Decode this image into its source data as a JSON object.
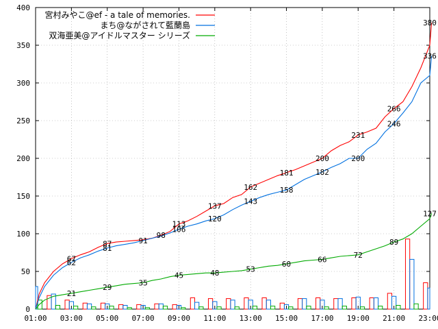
{
  "chart_data": {
    "type": "line",
    "title": "",
    "xlabel": "",
    "ylabel": "",
    "grid": true,
    "legend_position": "top-left",
    "x_range_hours": [
      1,
      23
    ],
    "ylim": [
      0,
      400
    ],
    "x_ticks": [
      "01:00",
      "03:00",
      "05:00",
      "07:00",
      "09:00",
      "11:00",
      "13:00",
      "15:00",
      "17:00",
      "19:00",
      "21:00",
      "23:00"
    ],
    "y_ticks": [
      "0",
      "50",
      "100",
      "150",
      "200",
      "250",
      "300",
      "350",
      "400"
    ],
    "series": [
      {
        "name": "宮村みやこ@ef - a tale of memories.",
        "color": "#ff0000",
        "points": [
          [
            1.0,
            0
          ],
          [
            1.2,
            20
          ],
          [
            1.5,
            35
          ],
          [
            2.0,
            50
          ],
          [
            2.5,
            60
          ],
          [
            3.0,
            67
          ],
          [
            3.5,
            72
          ],
          [
            4.0,
            76
          ],
          [
            4.5,
            82
          ],
          [
            5.0,
            87
          ],
          [
            5.5,
            89
          ],
          [
            6.0,
            90
          ],
          [
            6.5,
            91
          ],
          [
            7.0,
            92
          ],
          [
            7.5,
            94
          ],
          [
            8.0,
            98
          ],
          [
            8.5,
            103
          ],
          [
            9.0,
            113
          ],
          [
            9.5,
            117
          ],
          [
            10.0,
            123
          ],
          [
            10.5,
            130
          ],
          [
            11.0,
            137
          ],
          [
            11.5,
            140
          ],
          [
            12.0,
            148
          ],
          [
            12.5,
            152
          ],
          [
            13.0,
            162
          ],
          [
            13.5,
            167
          ],
          [
            14.0,
            172
          ],
          [
            14.5,
            177
          ],
          [
            15.0,
            181
          ],
          [
            15.5,
            185
          ],
          [
            16.0,
            190
          ],
          [
            16.5,
            195
          ],
          [
            17.0,
            200
          ],
          [
            17.5,
            210
          ],
          [
            18.0,
            217
          ],
          [
            18.5,
            222
          ],
          [
            19.0,
            231
          ],
          [
            19.5,
            235
          ],
          [
            20.0,
            240
          ],
          [
            20.5,
            255
          ],
          [
            21.0,
            266
          ],
          [
            21.5,
            275
          ],
          [
            22.0,
            295
          ],
          [
            22.5,
            320
          ],
          [
            23.0,
            350
          ],
          [
            23.1,
            380
          ]
        ],
        "labels": [
          [
            3.0,
            67,
            "67"
          ],
          [
            5.0,
            87,
            "87"
          ],
          [
            8.0,
            98,
            "98"
          ],
          [
            9.0,
            113,
            "113"
          ],
          [
            11.0,
            137,
            "137"
          ],
          [
            13.0,
            162,
            "162"
          ],
          [
            15.0,
            181,
            "181"
          ],
          [
            17.0,
            200,
            "200"
          ],
          [
            19.0,
            231,
            "231"
          ],
          [
            21.0,
            266,
            "266"
          ],
          [
            23.0,
            380,
            "380"
          ]
        ]
      },
      {
        "name": "まち@ながされて藍蘭島",
        "color": "#0070e0",
        "points": [
          [
            1.0,
            0
          ],
          [
            1.2,
            15
          ],
          [
            1.5,
            30
          ],
          [
            2.0,
            45
          ],
          [
            2.5,
            55
          ],
          [
            3.0,
            62
          ],
          [
            3.5,
            68
          ],
          [
            4.0,
            72
          ],
          [
            4.5,
            77
          ],
          [
            5.0,
            81
          ],
          [
            5.5,
            84
          ],
          [
            6.0,
            86
          ],
          [
            6.5,
            88
          ],
          [
            7.0,
            91
          ],
          [
            7.5,
            94
          ],
          [
            8.0,
            97
          ],
          [
            8.5,
            101
          ],
          [
            9.0,
            106
          ],
          [
            9.5,
            110
          ],
          [
            10.0,
            113
          ],
          [
            10.5,
            117
          ],
          [
            11.0,
            120
          ],
          [
            11.5,
            125
          ],
          [
            12.0,
            132
          ],
          [
            12.5,
            138
          ],
          [
            13.0,
            143
          ],
          [
            13.5,
            148
          ],
          [
            14.0,
            152
          ],
          [
            14.5,
            155
          ],
          [
            15.0,
            158
          ],
          [
            15.5,
            165
          ],
          [
            16.0,
            172
          ],
          [
            16.5,
            177
          ],
          [
            17.0,
            182
          ],
          [
            17.5,
            188
          ],
          [
            18.0,
            193
          ],
          [
            18.5,
            200
          ],
          [
            19.0,
            200
          ],
          [
            19.5,
            212
          ],
          [
            20.0,
            220
          ],
          [
            20.5,
            235
          ],
          [
            21.0,
            246
          ],
          [
            21.5,
            260
          ],
          [
            22.0,
            275
          ],
          [
            22.5,
            300
          ],
          [
            23.0,
            310
          ],
          [
            23.1,
            336
          ]
        ],
        "labels": [
          [
            3.0,
            62,
            "62"
          ],
          [
            5.0,
            81,
            "81"
          ],
          [
            7.0,
            91,
            "91"
          ],
          [
            9.0,
            106,
            "106"
          ],
          [
            11.0,
            120,
            "120"
          ],
          [
            13.0,
            143,
            "143"
          ],
          [
            15.0,
            158,
            "158"
          ],
          [
            17.0,
            182,
            "182"
          ],
          [
            19.0,
            200,
            "200"
          ],
          [
            21.0,
            246,
            "246"
          ],
          [
            23.0,
            336,
            "336"
          ]
        ]
      },
      {
        "name": "双海亜美@アイドルマスター シリーズ",
        "color": "#00aa00",
        "points": [
          [
            1.0,
            0
          ],
          [
            1.2,
            6
          ],
          [
            1.5,
            12
          ],
          [
            2.0,
            17
          ],
          [
            2.5,
            19
          ],
          [
            3.0,
            21
          ],
          [
            3.5,
            23
          ],
          [
            4.0,
            25
          ],
          [
            4.5,
            27
          ],
          [
            5.0,
            29
          ],
          [
            5.5,
            31
          ],
          [
            6.0,
            33
          ],
          [
            6.5,
            34
          ],
          [
            7.0,
            35
          ],
          [
            7.5,
            38
          ],
          [
            8.0,
            40
          ],
          [
            8.5,
            43
          ],
          [
            9.0,
            45
          ],
          [
            9.5,
            46
          ],
          [
            10.0,
            47
          ],
          [
            10.5,
            48
          ],
          [
            11.0,
            48
          ],
          [
            11.5,
            49
          ],
          [
            12.0,
            50
          ],
          [
            12.5,
            51
          ],
          [
            13.0,
            53
          ],
          [
            13.5,
            55
          ],
          [
            14.0,
            57
          ],
          [
            14.5,
            58
          ],
          [
            15.0,
            60
          ],
          [
            15.5,
            62
          ],
          [
            16.0,
            64
          ],
          [
            16.5,
            65
          ],
          [
            17.0,
            66
          ],
          [
            17.5,
            68
          ],
          [
            18.0,
            70
          ],
          [
            18.5,
            71
          ],
          [
            19.0,
            72
          ],
          [
            19.5,
            76
          ],
          [
            20.0,
            80
          ],
          [
            20.5,
            84
          ],
          [
            21.0,
            89
          ],
          [
            21.5,
            93
          ],
          [
            22.0,
            100
          ],
          [
            22.5,
            110
          ],
          [
            23.0,
            120
          ],
          [
            23.1,
            127
          ]
        ],
        "labels": [
          [
            3.0,
            21,
            "21"
          ],
          [
            5.0,
            29,
            "29"
          ],
          [
            7.0,
            35,
            "35"
          ],
          [
            9.0,
            45,
            "45"
          ],
          [
            11.0,
            48,
            "48"
          ],
          [
            13.0,
            53,
            "53"
          ],
          [
            15.0,
            60,
            "60"
          ],
          [
            17.0,
            66,
            "66"
          ],
          [
            19.0,
            72,
            "72"
          ],
          [
            21.0,
            89,
            "89"
          ],
          [
            23.0,
            127,
            "127"
          ]
        ]
      }
    ],
    "hourly_bars": {
      "hours": [
        1,
        2,
        3,
        4,
        5,
        6,
        7,
        8,
        9,
        10,
        11,
        12,
        13,
        14,
        15,
        16,
        17,
        18,
        19,
        20,
        21,
        22,
        23
      ],
      "red": [
        50,
        18,
        12,
        8,
        8,
        6,
        6,
        7,
        6,
        15,
        14,
        14,
        15,
        15,
        8,
        14,
        15,
        14,
        15,
        15,
        21,
        93,
        35
      ],
      "blue": [
        30,
        20,
        10,
        7,
        7,
        5,
        5,
        7,
        5,
        9,
        10,
        12,
        12,
        12,
        6,
        14,
        12,
        14,
        16,
        15,
        17,
        66,
        28
      ],
      "green": [
        12,
        5,
        4,
        3,
        4,
        2,
        2,
        4,
        2,
        3,
        3,
        3,
        4,
        4,
        3,
        4,
        3,
        4,
        3,
        4,
        5,
        7,
        28
      ]
    }
  }
}
